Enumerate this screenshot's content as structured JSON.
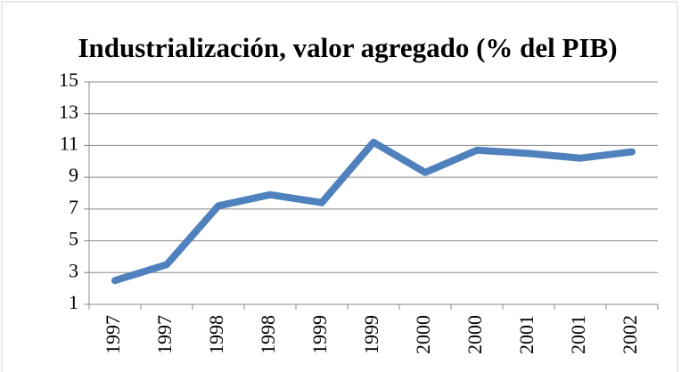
{
  "chart_data": {
    "type": "line",
    "title": "Industrialización, valor agregado (% del PIB)",
    "categories": [
      "1997",
      "1997",
      "1998",
      "1998",
      "1999",
      "1999",
      "2000",
      "2000",
      "2001",
      "2001",
      "2002"
    ],
    "series": [
      {
        "name": "Industrialización, valor agregado (% del PIB)",
        "color": "#4f81bd",
        "values": [
          2.5,
          3.5,
          7.2,
          7.9,
          7.4,
          11.2,
          9.3,
          10.7,
          10.5,
          10.2,
          10.6
        ]
      }
    ],
    "ylim": [
      1,
      15
    ],
    "yticks": [
      1,
      3,
      5,
      7,
      9,
      11,
      13,
      15
    ],
    "grid": true
  }
}
